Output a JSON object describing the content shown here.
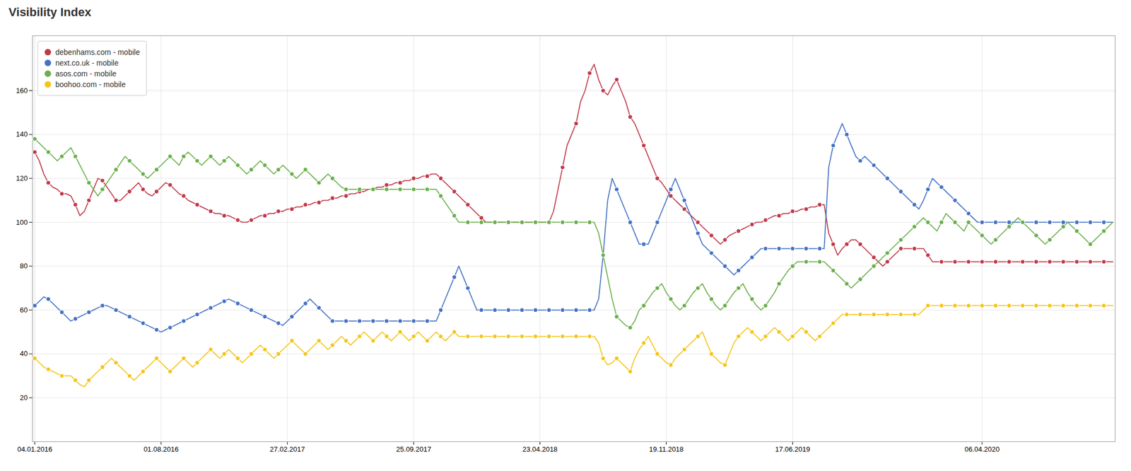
{
  "chart_data": {
    "type": "line",
    "title": "Visibility Index",
    "categories": [
      "04.01.2016",
      null,
      null,
      null,
      null,
      null,
      null,
      null,
      null,
      null,
      null,
      null,
      null,
      null,
      null,
      null,
      null,
      null,
      null,
      null,
      null,
      null,
      null,
      null,
      null,
      null,
      null,
      null,
      "01.08.2016",
      null,
      null,
      null,
      null,
      null,
      null,
      null,
      null,
      null,
      null,
      null,
      null,
      null,
      null,
      null,
      null,
      null,
      null,
      null,
      null,
      null,
      null,
      null,
      null,
      null,
      null,
      null,
      "27.02.2017",
      null,
      null,
      null,
      null,
      null,
      null,
      null,
      null,
      null,
      null,
      null,
      null,
      null,
      null,
      null,
      null,
      null,
      null,
      null,
      null,
      null,
      null,
      null,
      null,
      null,
      null,
      null,
      "25.09.2017",
      null,
      null,
      null,
      null,
      null,
      null,
      null,
      null,
      null,
      null,
      null,
      null,
      null,
      null,
      null,
      null,
      null,
      null,
      null,
      null,
      null,
      null,
      null,
      null,
      null,
      null,
      null,
      "23.04.2018",
      null,
      null,
      null,
      null,
      null,
      null,
      null,
      null,
      null,
      null,
      null,
      null,
      null,
      null,
      null,
      null,
      null,
      null,
      null,
      null,
      null,
      null,
      null,
      null,
      null,
      null,
      null,
      "19.11.2018",
      null,
      null,
      null,
      null,
      null,
      null,
      null,
      null,
      null,
      null,
      null,
      null,
      null,
      null,
      null,
      null,
      null,
      null,
      null,
      null,
      null,
      null,
      null,
      null,
      null,
      null,
      null,
      "17.06.2019",
      null,
      null,
      null,
      null,
      null,
      null,
      null,
      null,
      null,
      null,
      null,
      null,
      null,
      null,
      null,
      null,
      null,
      null,
      null,
      null,
      null,
      null,
      null,
      null,
      null,
      null,
      null,
      null,
      null,
      null,
      null,
      null,
      null,
      null,
      null,
      null,
      null,
      null,
      null,
      null,
      null,
      "06.04.2020",
      null,
      null,
      null,
      null,
      null,
      null,
      null,
      null,
      null,
      null,
      null,
      null,
      null,
      null,
      null,
      null,
      null,
      null,
      null,
      null,
      null,
      null,
      null,
      null,
      null,
      null,
      null,
      null,
      null
    ],
    "series": [
      {
        "name": "debenhams.com - mobile",
        "color": "#c0394a",
        "values": [
          132,
          128,
          122,
          118,
          116,
          115,
          113,
          113,
          112,
          108,
          103,
          105,
          110,
          115,
          120,
          119,
          116,
          113,
          110,
          110,
          112,
          114,
          116,
          118,
          115,
          113,
          112,
          114,
          116,
          118,
          117,
          115,
          113,
          112,
          110,
          109,
          108,
          107,
          106,
          105,
          104,
          104,
          103,
          103,
          102,
          101,
          100,
          100,
          101,
          102,
          103,
          103,
          104,
          104,
          105,
          105,
          106,
          106,
          107,
          107,
          108,
          108,
          109,
          109,
          110,
          110,
          111,
          111,
          112,
          112,
          113,
          113,
          114,
          114,
          115,
          115,
          116,
          116,
          117,
          117,
          118,
          118,
          119,
          119,
          120,
          120,
          121,
          121,
          122,
          122,
          120,
          118,
          116,
          114,
          112,
          110,
          108,
          106,
          104,
          102,
          100,
          100,
          100,
          100,
          100,
          100,
          100,
          100,
          100,
          100,
          100,
          100,
          100,
          100,
          100,
          105,
          115,
          125,
          135,
          140,
          145,
          155,
          160,
          168,
          172,
          165,
          160,
          158,
          162,
          165,
          160,
          155,
          148,
          145,
          140,
          135,
          130,
          125,
          120,
          118,
          115,
          112,
          110,
          108,
          106,
          104,
          102,
          100,
          98,
          96,
          94,
          92,
          90,
          92,
          94,
          95,
          96,
          97,
          98,
          99,
          100,
          100,
          101,
          102,
          103,
          103,
          104,
          104,
          105,
          105,
          106,
          106,
          107,
          107,
          108,
          108,
          95,
          90,
          85,
          88,
          90,
          92,
          92,
          90,
          88,
          86,
          84,
          82,
          80,
          82,
          84,
          86,
          88,
          88,
          88,
          88,
          88,
          88,
          85,
          82,
          82,
          82,
          82,
          82,
          82,
          82,
          82,
          82,
          82,
          82,
          82,
          82,
          82,
          82,
          82,
          82,
          82,
          82,
          82,
          82,
          82,
          82,
          82,
          82,
          82,
          82,
          82,
          82,
          82,
          82,
          82,
          82,
          82,
          82,
          82,
          82,
          82,
          82,
          82,
          82
        ]
      },
      {
        "name": "next.co.uk - mobile",
        "color": "#4472c4",
        "values": [
          62,
          64,
          66,
          65,
          63,
          61,
          59,
          57,
          55,
          56,
          57,
          58,
          59,
          60,
          61,
          62,
          62,
          61,
          60,
          59,
          58,
          57,
          56,
          55,
          54,
          53,
          52,
          51,
          50,
          51,
          52,
          53,
          54,
          55,
          56,
          57,
          58,
          59,
          60,
          61,
          62,
          63,
          64,
          65,
          64,
          63,
          62,
          61,
          60,
          59,
          58,
          57,
          56,
          55,
          54,
          53,
          55,
          57,
          59,
          61,
          63,
          65,
          63,
          61,
          59,
          57,
          55,
          55,
          55,
          55,
          55,
          55,
          55,
          55,
          55,
          55,
          55,
          55,
          55,
          55,
          55,
          55,
          55,
          55,
          55,
          55,
          55,
          55,
          55,
          55,
          60,
          65,
          70,
          75,
          80,
          75,
          70,
          65,
          60,
          60,
          60,
          60,
          60,
          60,
          60,
          60,
          60,
          60,
          60,
          60,
          60,
          60,
          60,
          60,
          60,
          60,
          60,
          60,
          60,
          60,
          60,
          60,
          60,
          60,
          60,
          65,
          85,
          110,
          120,
          115,
          110,
          105,
          100,
          95,
          90,
          90,
          90,
          95,
          100,
          105,
          110,
          115,
          120,
          115,
          110,
          105,
          100,
          95,
          90,
          88,
          86,
          84,
          82,
          80,
          78,
          76,
          78,
          80,
          82,
          84,
          86,
          88,
          88,
          88,
          88,
          88,
          88,
          88,
          88,
          88,
          88,
          88,
          88,
          88,
          88,
          88,
          125,
          135,
          140,
          145,
          140,
          135,
          130,
          128,
          130,
          128,
          126,
          124,
          122,
          120,
          118,
          116,
          114,
          112,
          110,
          108,
          106,
          110,
          115,
          120,
          118,
          116,
          114,
          112,
          110,
          108,
          106,
          104,
          102,
          100,
          100,
          100,
          100,
          100,
          100,
          100,
          100,
          100,
          100,
          100,
          100,
          100,
          100,
          100,
          100,
          100,
          100,
          100,
          100,
          100,
          100,
          100,
          100,
          100,
          100,
          100,
          100,
          100,
          100,
          100
        ]
      },
      {
        "name": "asos.com - mobile",
        "color": "#6ab04c",
        "values": [
          138,
          136,
          134,
          132,
          130,
          128,
          130,
          132,
          134,
          130,
          126,
          122,
          118,
          115,
          112,
          115,
          118,
          121,
          124,
          127,
          130,
          128,
          126,
          124,
          122,
          120,
          122,
          124,
          126,
          128,
          130,
          128,
          126,
          130,
          132,
          130,
          128,
          126,
          128,
          130,
          128,
          126,
          128,
          130,
          128,
          126,
          124,
          122,
          124,
          126,
          128,
          126,
          124,
          122,
          124,
          126,
          124,
          122,
          120,
          122,
          124,
          122,
          120,
          118,
          120,
          122,
          120,
          118,
          116,
          115,
          115,
          115,
          115,
          115,
          115,
          115,
          115,
          115,
          115,
          115,
          115,
          115,
          115,
          115,
          115,
          115,
          115,
          115,
          115,
          115,
          112,
          109,
          106,
          103,
          100,
          100,
          100,
          100,
          100,
          100,
          100,
          100,
          100,
          100,
          100,
          100,
          100,
          100,
          100,
          100,
          100,
          100,
          100,
          100,
          100,
          100,
          100,
          100,
          100,
          100,
          100,
          100,
          100,
          100,
          100,
          95,
          85,
          75,
          65,
          57,
          55,
          53,
          52,
          55,
          60,
          62,
          65,
          68,
          70,
          72,
          68,
          65,
          62,
          60,
          62,
          65,
          68,
          70,
          72,
          68,
          65,
          62,
          60,
          62,
          65,
          68,
          70,
          72,
          68,
          65,
          62,
          60,
          62,
          65,
          68,
          72,
          75,
          78,
          80,
          82,
          82,
          82,
          82,
          82,
          82,
          82,
          80,
          78,
          76,
          74,
          72,
          70,
          72,
          74,
          76,
          78,
          80,
          82,
          84,
          86,
          88,
          90,
          92,
          94,
          96,
          98,
          100,
          102,
          100,
          98,
          96,
          100,
          104,
          102,
          100,
          98,
          96,
          100,
          98,
          96,
          94,
          92,
          90,
          92,
          94,
          96,
          98,
          100,
          102,
          100,
          98,
          96,
          94,
          92,
          90,
          92,
          94,
          96,
          98,
          100,
          98,
          96,
          94,
          92,
          90,
          92,
          94,
          96,
          98,
          100
        ]
      },
      {
        "name": "boohoo.com - mobile",
        "color": "#f5c518",
        "values": [
          38,
          36,
          34,
          33,
          32,
          31,
          30,
          30,
          30,
          28,
          26,
          25,
          28,
          30,
          32,
          34,
          36,
          38,
          36,
          34,
          32,
          30,
          28,
          30,
          32,
          34,
          36,
          38,
          36,
          34,
          32,
          34,
          36,
          38,
          36,
          34,
          36,
          38,
          40,
          42,
          40,
          38,
          40,
          42,
          40,
          38,
          36,
          38,
          40,
          42,
          44,
          42,
          40,
          38,
          40,
          42,
          44,
          46,
          44,
          42,
          40,
          42,
          44,
          46,
          44,
          42,
          44,
          46,
          48,
          46,
          44,
          46,
          48,
          50,
          48,
          46,
          48,
          50,
          48,
          46,
          48,
          50,
          48,
          46,
          48,
          50,
          48,
          46,
          48,
          50,
          48,
          46,
          48,
          50,
          48,
          48,
          48,
          48,
          48,
          48,
          48,
          48,
          48,
          48,
          48,
          48,
          48,
          48,
          48,
          48,
          48,
          48,
          48,
          48,
          48,
          48,
          48,
          48,
          48,
          48,
          48,
          48,
          48,
          48,
          48,
          45,
          38,
          35,
          36,
          38,
          36,
          34,
          32,
          38,
          42,
          45,
          48,
          44,
          40,
          38,
          36,
          35,
          38,
          40,
          42,
          44,
          46,
          48,
          50,
          45,
          40,
          38,
          36,
          35,
          40,
          45,
          48,
          50,
          52,
          50,
          48,
          46,
          48,
          50,
          52,
          50,
          48,
          46,
          48,
          50,
          52,
          50,
          48,
          46,
          48,
          50,
          52,
          54,
          56,
          58,
          58,
          58,
          58,
          58,
          58,
          58,
          58,
          58,
          58,
          58,
          58,
          58,
          58,
          58,
          58,
          58,
          58,
          60,
          62,
          62,
          62,
          62,
          62,
          62,
          62,
          62,
          62,
          62,
          62,
          62,
          62,
          62,
          62,
          62,
          62,
          62,
          62,
          62,
          62,
          62,
          62,
          62,
          62,
          62,
          62,
          62,
          62,
          62,
          62,
          62,
          62,
          62,
          62,
          62,
          62,
          62,
          62,
          62,
          62,
          62
        ]
      }
    ],
    "ylim": [
      0,
      185
    ],
    "yticks": [
      20,
      40,
      60,
      80,
      100,
      120,
      140,
      160
    ],
    "grid": true,
    "legend": "upper left",
    "marker": "circle"
  }
}
